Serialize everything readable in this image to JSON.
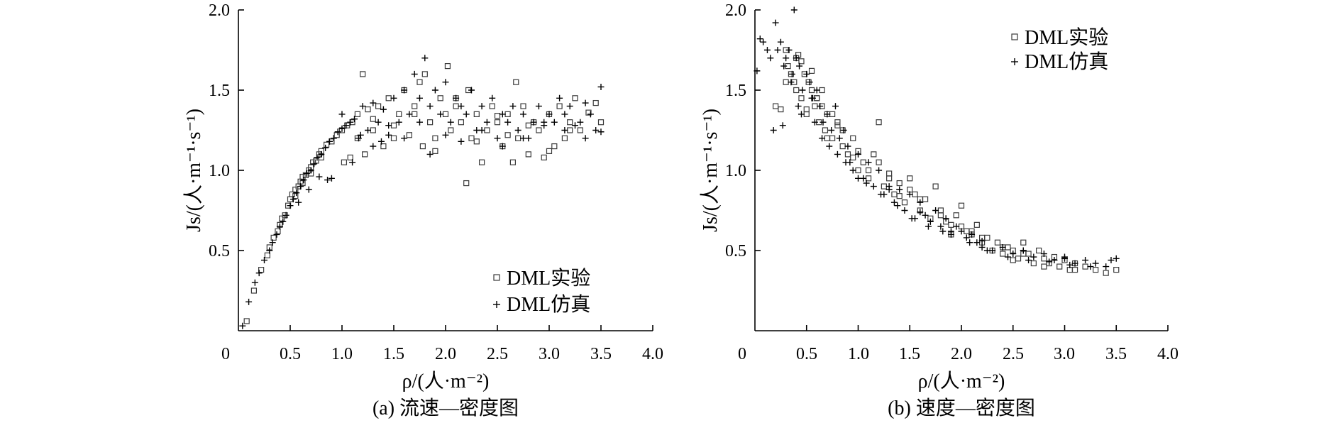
{
  "figure": {
    "panels": [
      {
        "caption": "(a) 流速—密度图",
        "xlabel": "ρ/(人·m⁻²)",
        "ylabel": "Js/(人·m⁻¹·s⁻¹)",
        "legend": [
          {
            "label": "DML实验",
            "marker": "square"
          },
          {
            "label": "DML仿真",
            "marker": "plus"
          }
        ]
      },
      {
        "caption": "(b) 速度—密度图",
        "xlabel": "ρ/(人·m⁻²)",
        "ylabel": "Js/(人·m⁻¹·s⁻¹)",
        "legend": [
          {
            "label": "DML实验",
            "marker": "square"
          },
          {
            "label": "DML仿真",
            "marker": "plus"
          }
        ]
      }
    ]
  },
  "chart_data": [
    {
      "type": "scatter",
      "title": "",
      "caption": "(a) 流速—密度图",
      "xlabel": "ρ/(人·m⁻²)",
      "ylabel": "Js/(人·m⁻¹·s⁻¹)",
      "xlim": [
        0,
        4.0
      ],
      "ylim": [
        0,
        2.0
      ],
      "xticks": [
        "0",
        "0.5",
        "1.0",
        "1.5",
        "2.0",
        "2.5",
        "3.0",
        "3.5",
        "4.0"
      ],
      "yticks": [
        "0.5",
        "1.0",
        "1.5",
        "2.0"
      ],
      "grid": false,
      "legend_position": "lower-right",
      "series": [
        {
          "name": "DML实验",
          "marker": "square",
          "x": [
            0.08,
            0.15,
            0.22,
            0.28,
            0.3,
            0.34,
            0.38,
            0.4,
            0.42,
            0.45,
            0.48,
            0.5,
            0.52,
            0.55,
            0.58,
            0.6,
            0.62,
            0.65,
            0.68,
            0.7,
            0.72,
            0.75,
            0.78,
            0.8,
            0.85,
            0.9,
            0.95,
            1.0,
            1.02,
            1.05,
            1.08,
            1.1,
            1.15,
            1.2,
            1.22,
            1.25,
            1.3,
            1.35,
            1.4,
            1.45,
            1.5,
            1.55,
            1.6,
            1.65,
            1.7,
            1.75,
            1.78,
            1.8,
            1.85,
            1.9,
            1.95,
            2.0,
            2.02,
            2.05,
            2.1,
            2.15,
            2.2,
            2.22,
            2.25,
            2.3,
            2.35,
            2.4,
            2.45,
            2.5,
            2.55,
            2.6,
            2.65,
            2.68,
            2.7,
            2.75,
            2.8,
            2.85,
            2.9,
            2.95,
            3.0,
            3.05,
            3.1,
            3.15,
            3.2,
            3.25,
            3.3,
            3.38,
            3.45,
            3.5,
            1.15,
            1.3,
            1.5,
            1.7,
            1.9,
            2.1,
            2.3,
            2.5,
            2.6,
            2.8,
            3.0,
            3.2,
            0.55,
            0.62,
            0.7,
            0.8
          ],
          "y": [
            0.06,
            0.25,
            0.38,
            0.47,
            0.52,
            0.58,
            0.62,
            0.66,
            0.7,
            0.72,
            0.78,
            0.82,
            0.85,
            0.88,
            0.9,
            0.93,
            0.96,
            0.97,
            1.0,
            1.02,
            1.05,
            1.06,
            1.1,
            1.12,
            1.16,
            1.18,
            1.22,
            1.25,
            1.05,
            1.28,
            1.08,
            1.3,
            1.35,
            1.6,
            1.1,
            1.38,
            1.25,
            1.4,
            1.15,
            1.45,
            1.2,
            1.35,
            1.5,
            1.22,
            1.4,
            1.55,
            1.15,
            1.6,
            1.3,
            1.2,
            1.45,
            1.35,
            1.65,
            1.25,
            1.4,
            1.3,
            0.92,
            1.5,
            1.2,
            1.35,
            1.05,
            1.25,
            1.4,
            1.3,
            1.15,
            1.35,
            1.05,
            1.55,
            1.2,
            1.4,
            1.1,
            1.3,
            1.25,
            1.08,
            1.35,
            1.15,
            1.4,
            1.2,
            1.3,
            1.45,
            1.25,
            1.36,
            1.42,
            1.3,
            1.2,
            1.32,
            1.28,
            1.35,
            1.12,
            1.45,
            1.18,
            1.34,
            1.22,
            1.28,
            1.12,
            1.25,
            0.84,
            0.92,
            0.98,
            1.08
          ]
        },
        {
          "name": "DML仿真",
          "marker": "plus",
          "x": [
            0.04,
            0.1,
            0.16,
            0.2,
            0.25,
            0.3,
            0.33,
            0.37,
            0.4,
            0.43,
            0.46,
            0.5,
            0.53,
            0.56,
            0.6,
            0.63,
            0.66,
            0.7,
            0.73,
            0.76,
            0.8,
            0.84,
            0.88,
            0.92,
            0.96,
            1.0,
            1.04,
            1.08,
            1.12,
            1.16,
            1.2,
            1.25,
            1.3,
            1.35,
            1.4,
            1.45,
            1.5,
            1.55,
            1.6,
            1.65,
            1.7,
            1.75,
            1.8,
            1.85,
            1.9,
            1.95,
            2.0,
            2.05,
            2.1,
            2.15,
            2.2,
            2.25,
            2.3,
            2.35,
            2.4,
            2.45,
            2.5,
            2.55,
            2.6,
            2.65,
            2.7,
            2.75,
            2.8,
            2.85,
            2.9,
            2.95,
            3.0,
            3.05,
            3.1,
            3.15,
            3.2,
            3.25,
            3.3,
            3.35,
            3.4,
            3.45,
            3.5,
            0.9,
            1.0,
            1.1,
            1.3,
            1.45,
            1.6,
            1.75,
            1.85,
            2.0,
            2.15,
            2.35,
            2.55,
            2.75,
            2.95,
            3.15,
            3.35,
            3.5,
            0.58,
            0.68,
            0.78,
            0.86,
            1.18,
            1.38
          ],
          "y": [
            0.03,
            0.18,
            0.3,
            0.36,
            0.44,
            0.5,
            0.55,
            0.6,
            0.65,
            0.68,
            0.72,
            0.78,
            0.82,
            0.86,
            0.9,
            0.94,
            0.98,
            1.0,
            1.04,
            1.08,
            1.1,
            1.14,
            1.18,
            1.2,
            1.24,
            1.26,
            1.28,
            1.3,
            1.32,
            1.2,
            1.4,
            1.25,
            1.42,
            1.3,
            1.38,
            1.22,
            1.45,
            1.3,
            1.5,
            1.35,
            1.6,
            1.45,
            1.7,
            1.4,
            1.5,
            1.35,
            1.55,
            1.3,
            1.45,
            1.4,
            1.35,
            1.5,
            1.25,
            1.4,
            1.3,
            1.45,
            1.2,
            1.35,
            1.3,
            1.4,
            1.25,
            1.35,
            1.2,
            1.3,
            1.4,
            1.28,
            1.35,
            1.3,
            1.45,
            1.35,
            1.4,
            1.28,
            1.3,
            1.42,
            1.35,
            1.25,
            1.52,
            0.95,
            1.35,
            1.05,
            1.15,
            1.28,
            1.2,
            1.3,
            1.1,
            1.22,
            1.18,
            1.25,
            1.15,
            1.2,
            1.3,
            1.25,
            1.2,
            1.24,
            0.8,
            0.88,
            0.96,
            0.94,
            1.22,
            1.18
          ]
        }
      ]
    },
    {
      "type": "scatter",
      "title": "",
      "caption": "(b) 速度—密度图",
      "xlabel": "ρ/(人·m⁻²)",
      "ylabel": "Js/(人·m⁻¹·s⁻¹)",
      "xlim": [
        0,
        4.0
      ],
      "ylim": [
        0,
        2.0
      ],
      "xticks": [
        "0",
        "0.5",
        "1.0",
        "1.5",
        "2.0",
        "2.5",
        "3.0",
        "3.5",
        "4.0"
      ],
      "yticks": [
        "0.5",
        "1.0",
        "1.5",
        "2.0"
      ],
      "grid": false,
      "legend_position": "top-right",
      "series": [
        {
          "name": "DML实验",
          "marker": "square",
          "x": [
            0.2,
            0.25,
            0.3,
            0.32,
            0.35,
            0.38,
            0.4,
            0.42,
            0.45,
            0.48,
            0.5,
            0.52,
            0.55,
            0.58,
            0.6,
            0.62,
            0.65,
            0.68,
            0.7,
            0.75,
            0.8,
            0.85,
            0.9,
            0.95,
            1.0,
            1.05,
            1.1,
            1.15,
            1.2,
            1.25,
            1.3,
            1.35,
            1.4,
            1.45,
            1.5,
            1.55,
            1.6,
            1.65,
            1.7,
            1.75,
            1.8,
            1.85,
            1.9,
            1.95,
            2.0,
            2.05,
            2.1,
            2.15,
            2.2,
            2.25,
            2.3,
            2.35,
            2.4,
            2.45,
            2.5,
            2.55,
            2.6,
            2.65,
            2.7,
            2.75,
            2.8,
            2.85,
            2.9,
            2.95,
            3.0,
            3.05,
            3.1,
            3.2,
            3.3,
            3.4,
            3.5,
            0.45,
            0.55,
            0.65,
            0.75,
            0.85,
            1.2,
            1.5,
            1.8,
            2.1,
            2.6,
            0.3,
            0.5,
            0.7,
            1.0,
            1.3,
            1.6,
            1.9,
            2.2,
            2.5,
            2.8,
            3.1,
            0.95,
            1.4,
            0.4,
            0.6,
            0.8,
            1.1,
            2.0,
            2.4
          ],
          "y": [
            1.4,
            1.38,
            1.75,
            1.65,
            1.6,
            1.55,
            1.5,
            1.72,
            1.45,
            1.6,
            1.35,
            1.55,
            1.5,
            1.4,
            1.45,
            1.3,
            1.4,
            1.25,
            1.35,
            1.2,
            1.3,
            1.25,
            1.1,
            1.2,
            1.0,
            1.05,
            0.95,
            1.1,
            1.3,
            0.9,
            0.95,
            0.85,
            0.92,
            0.8,
            0.95,
            0.85,
            0.75,
            0.82,
            0.7,
            0.9,
            0.72,
            0.68,
            0.6,
            0.72,
            0.78,
            0.62,
            0.6,
            0.66,
            0.55,
            0.58,
            0.5,
            0.55,
            0.48,
            0.52,
            0.5,
            0.45,
            0.55,
            0.48,
            0.42,
            0.5,
            0.45,
            0.42,
            0.46,
            0.4,
            0.44,
            0.38,
            0.42,
            0.4,
            0.38,
            0.36,
            0.38,
            1.68,
            1.62,
            1.5,
            1.35,
            1.15,
            1.05,
            0.88,
            0.75,
            0.62,
            0.48,
            1.55,
            1.38,
            1.2,
            1.12,
            0.98,
            0.82,
            0.66,
            0.58,
            0.44,
            0.4,
            0.38,
            1.08,
            0.84,
            1.7,
            1.45,
            1.28,
            1.0,
            0.65,
            0.52
          ]
        },
        {
          "name": "DML仿真",
          "marker": "plus",
          "x": [
            0.02,
            0.05,
            0.08,
            0.12,
            0.15,
            0.2,
            0.22,
            0.25,
            0.28,
            0.3,
            0.33,
            0.36,
            0.38,
            0.4,
            0.43,
            0.46,
            0.5,
            0.53,
            0.56,
            0.6,
            0.63,
            0.66,
            0.7,
            0.74,
            0.78,
            0.82,
            0.86,
            0.9,
            0.95,
            1.0,
            1.05,
            1.1,
            1.15,
            1.2,
            1.25,
            1.3,
            1.35,
            1.4,
            1.45,
            1.5,
            1.55,
            1.6,
            1.65,
            1.7,
            1.75,
            1.8,
            1.85,
            1.9,
            1.95,
            2.0,
            2.05,
            2.1,
            2.15,
            2.2,
            2.3,
            2.4,
            2.5,
            2.6,
            2.7,
            2.8,
            2.9,
            3.0,
            3.1,
            3.2,
            3.3,
            3.4,
            3.5,
            0.18,
            0.35,
            0.45,
            0.55,
            0.65,
            0.8,
            0.92,
            1.08,
            1.22,
            1.38,
            1.52,
            1.68,
            1.82,
            2.08,
            2.25,
            2.45,
            2.65,
            2.85,
            3.05,
            3.25,
            3.45,
            0.27,
            0.42,
            0.58,
            0.72,
            0.88,
            1.0,
            1.3,
            1.6,
            1.9,
            2.2,
            2.6,
            3.0
          ],
          "y": [
            1.62,
            1.82,
            1.8,
            1.75,
            1.7,
            1.92,
            1.75,
            1.8,
            1.65,
            1.7,
            1.75,
            1.6,
            2.0,
            1.7,
            1.65,
            1.5,
            1.6,
            1.55,
            1.45,
            1.5,
            1.4,
            1.3,
            1.35,
            1.25,
            1.4,
            1.2,
            1.25,
            1.15,
            1.0,
            1.1,
            0.95,
            1.05,
            0.9,
            1.0,
            0.85,
            0.9,
            0.8,
            0.88,
            0.75,
            0.85,
            0.7,
            0.8,
            0.72,
            0.68,
            0.75,
            0.65,
            0.7,
            0.6,
            0.65,
            0.62,
            0.58,
            0.6,
            0.55,
            0.52,
            0.5,
            0.52,
            0.48,
            0.5,
            0.46,
            0.48,
            0.44,
            0.46,
            0.42,
            0.44,
            0.42,
            0.4,
            0.45,
            1.25,
            1.55,
            1.35,
            1.45,
            1.2,
            1.1,
            1.05,
            0.92,
            0.85,
            0.78,
            0.7,
            0.65,
            0.62,
            0.55,
            0.5,
            0.46,
            0.44,
            0.43,
            0.41,
            0.4,
            0.44,
            1.28,
            1.4,
            1.3,
            1.15,
            1.05,
            0.95,
            0.88,
            0.74,
            0.62,
            0.56,
            0.5,
            0.45
          ]
        }
      ]
    }
  ]
}
